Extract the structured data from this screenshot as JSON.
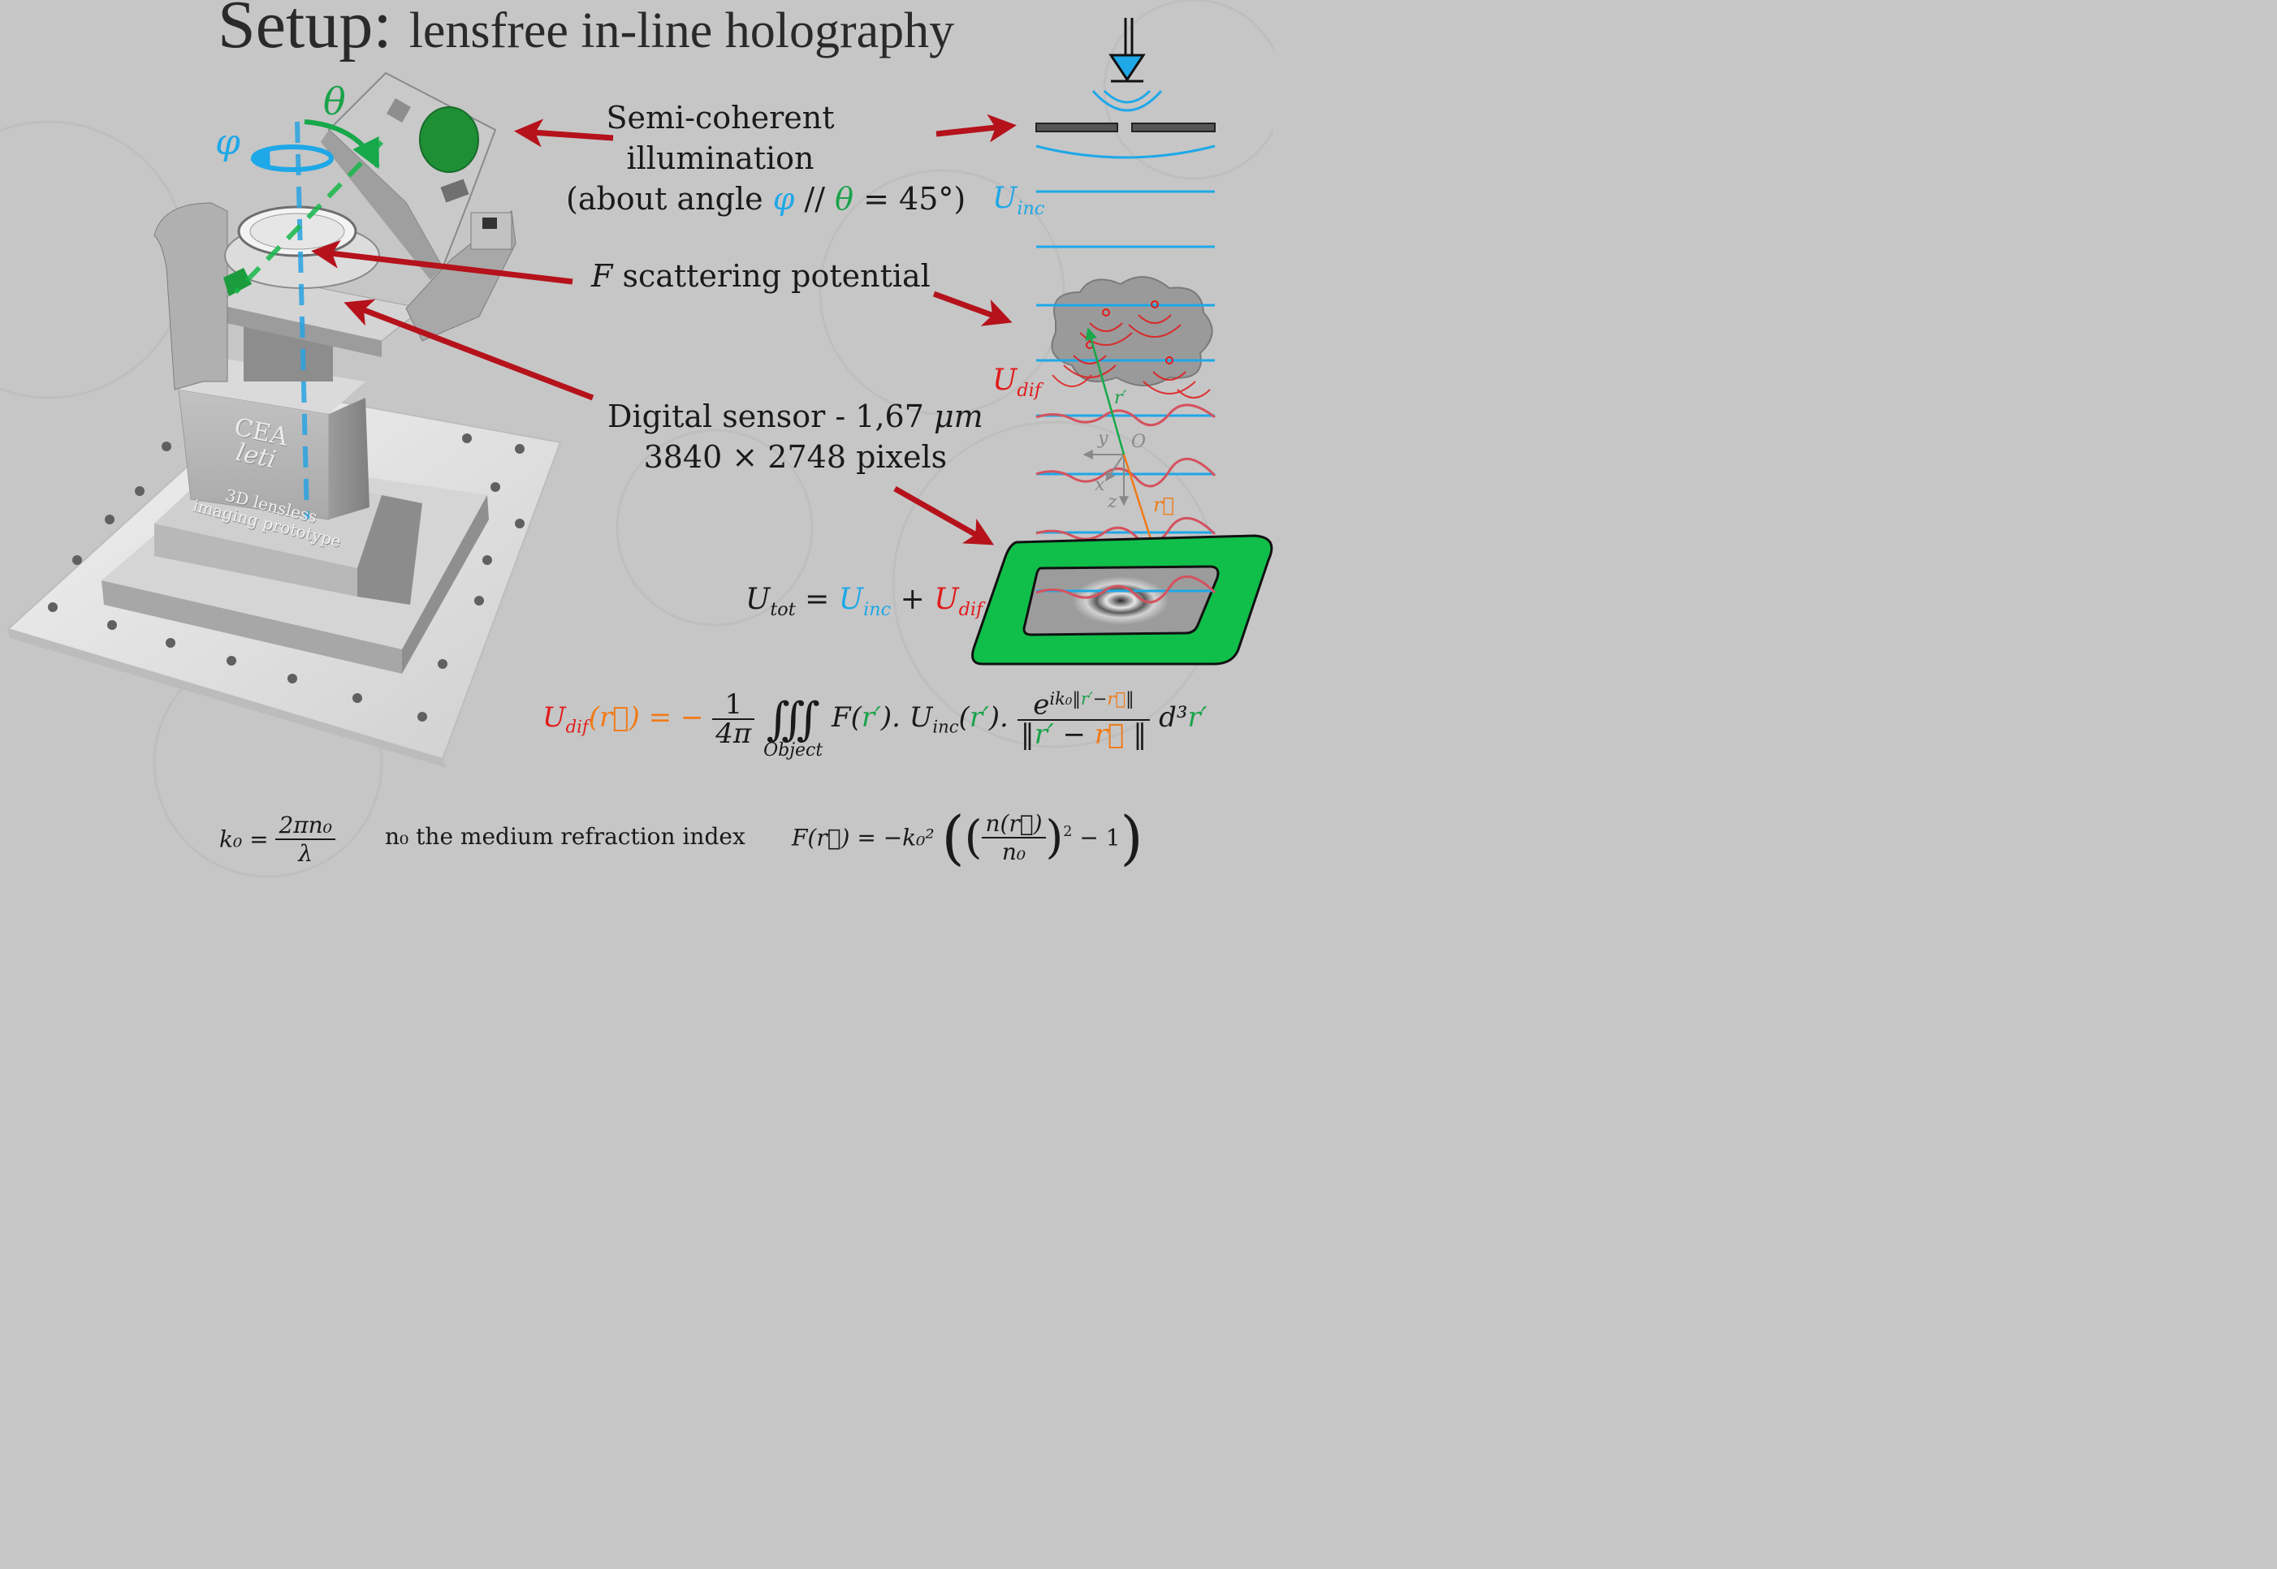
{
  "title": {
    "main": "Setup:",
    "sub": "lensfree in-line holography"
  },
  "labels": {
    "illumination": [
      "Semi-coherent",
      "illumination"
    ],
    "angle_prefix": "(about angle",
    "angle_phi": "φ",
    "angle_sep": "//",
    "angle_theta": "θ",
    "angle_suffix": "= 45°)",
    "scattering_F": "F",
    "scattering_text": "scattering potential",
    "sensor_line1": "Digital sensor - 1,67",
    "sensor_unit": "μm",
    "sensor_line2": "3840 × 2748 pixels",
    "phi": "φ",
    "theta": "θ"
  },
  "prototype": {
    "brand_top": "CEA",
    "brand_bottom": "leti",
    "caption_line1": "3D lensless",
    "caption_line2": "imaging prototype"
  },
  "diagram": {
    "U": "U",
    "inc": "inc",
    "dif": "dif",
    "tot": "tot",
    "r_vec": "r⃗",
    "r_prime": "r′",
    "axis_y": "y",
    "axis_x": "x",
    "axis_z": "z",
    "axis_O": "O"
  },
  "equations": {
    "eq_lhs": "(r⃗) = −",
    "eq_one": "1",
    "eq_4pi": "4π",
    "eq_integral": "∭",
    "eq_object": "Object",
    "eq_F": "F(",
    "eq_mid": "). U",
    "eq_exp_e": "e",
    "eq_exp": "ik₀‖",
    "eq_d3": "d³",
    "k0_lhs": "k₀ =",
    "k0_num": "2πn₀",
    "k0_den": "λ",
    "n0_note": "n₀ the medium refraction index",
    "F_lhs": "F(r⃗) = −k₀²",
    "F_num": "n(r⃗)",
    "F_den": "n₀",
    "F_rest": "− 1"
  },
  "colors": {
    "red_arrow": "#b5121b",
    "blue": "#1ea8e8",
    "green": "#16b84a",
    "red": "#e11b1b",
    "orange": "#f07a17",
    "background": "#c6c6c6"
  }
}
